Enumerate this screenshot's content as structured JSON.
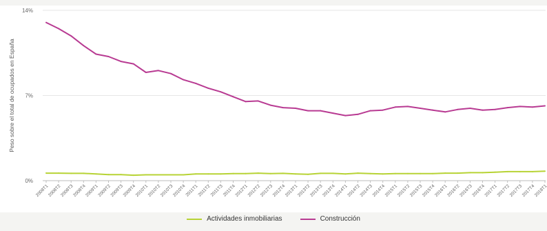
{
  "chart_data": {
    "type": "line",
    "ylabel": "Peso sobre el total de ocupados en España",
    "ylim": [
      0,
      14
    ],
    "yticks": [
      {
        "value": 14,
        "label": "14%"
      },
      {
        "value": 7,
        "label": "7%"
      },
      {
        "value": 0,
        "label": "0%"
      }
    ],
    "categories": [
      "2008T1",
      "2008T2",
      "2008T3",
      "2008T4",
      "2009T1",
      "2009T2",
      "2009T3",
      "2009T4",
      "2010T1",
      "2010T2",
      "2010T3",
      "2010T4",
      "2011T1",
      "2011T2",
      "2011T3",
      "2011T4",
      "2012T1",
      "2012T2",
      "2012T3",
      "2012T4",
      "2013T1",
      "2013T2",
      "2013T3",
      "2013T4",
      "2014T1",
      "2014T2",
      "2014T3",
      "2014T4",
      "2015T1",
      "2015T2",
      "2015T3",
      "2015T4",
      "2016T1",
      "2016T2",
      "2016T3",
      "2016T4",
      "2017T1",
      "2017T2",
      "2017T3",
      "2017T4",
      "2018T1"
    ],
    "series": [
      {
        "name": "Actividades inmobiliarias",
        "color": "#b7d334",
        "values": [
          0.62,
          0.62,
          0.6,
          0.6,
          0.55,
          0.5,
          0.5,
          0.45,
          0.48,
          0.48,
          0.48,
          0.48,
          0.55,
          0.55,
          0.55,
          0.58,
          0.58,
          0.62,
          0.58,
          0.6,
          0.55,
          0.52,
          0.6,
          0.6,
          0.55,
          0.62,
          0.58,
          0.55,
          0.58,
          0.58,
          0.58,
          0.58,
          0.62,
          0.62,
          0.66,
          0.66,
          0.7,
          0.74,
          0.74,
          0.74,
          0.78
        ]
      },
      {
        "name": "Construcción",
        "color": "#b83a92",
        "values": [
          13.0,
          12.5,
          11.9,
          11.1,
          10.4,
          10.2,
          9.8,
          9.6,
          8.9,
          9.05,
          8.8,
          8.3,
          8.0,
          7.6,
          7.3,
          6.9,
          6.5,
          6.55,
          6.2,
          6.0,
          5.95,
          5.75,
          5.75,
          5.55,
          5.35,
          5.45,
          5.75,
          5.8,
          6.05,
          6.1,
          5.95,
          5.8,
          5.65,
          5.85,
          5.95,
          5.8,
          5.85,
          6.0,
          6.1,
          6.05,
          6.15
        ]
      }
    ],
    "grid": "horizontal",
    "legend": "bottom"
  }
}
